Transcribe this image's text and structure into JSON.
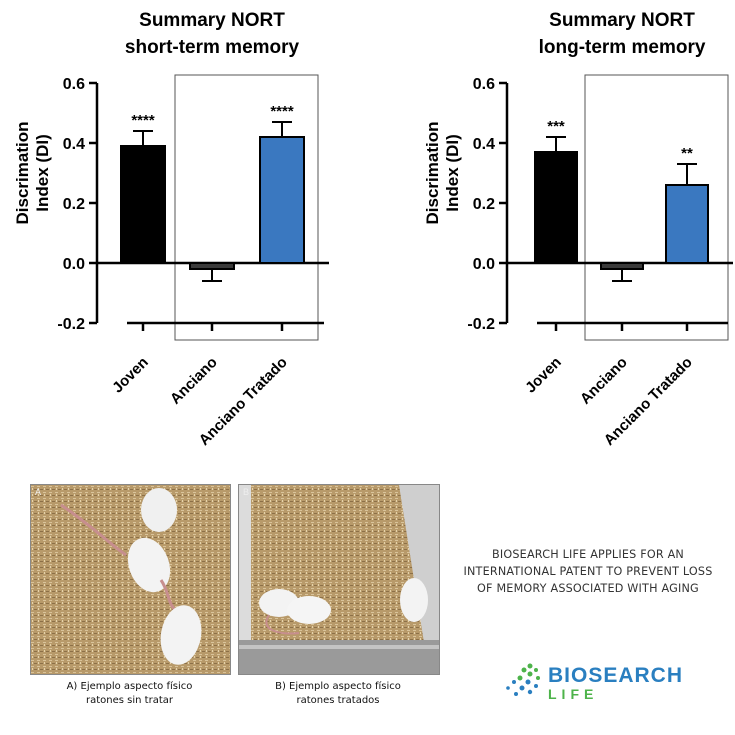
{
  "chart_data": [
    {
      "type": "bar",
      "title": "Summary NORT",
      "subtitle": "short-term memory",
      "ylabel": "Discrimation Index (DI)",
      "ylabel_lines": [
        "Discrimation",
        "Index (DI)"
      ],
      "categories": [
        "Joven",
        "Anciano",
        "Anciano Tratado"
      ],
      "values": [
        0.39,
        -0.02,
        0.42
      ],
      "errors": [
        0.05,
        0.04,
        0.05
      ],
      "significance": [
        "****",
        "",
        "****"
      ],
      "bar_colors": [
        "#000000",
        "#3a3a3a",
        "#3a78c0"
      ],
      "ylim": [
        -0.2,
        0.6
      ],
      "yticks": [
        "-0.2",
        "0.0",
        "0.2",
        "0.4",
        "0.6"
      ]
    },
    {
      "type": "bar",
      "title": "Summary NORT",
      "subtitle": "long-term memory",
      "ylabel": "Discrimation Index (DI)",
      "ylabel_lines": [
        "Discrimation",
        "Index (DI)"
      ],
      "categories": [
        "Joven",
        "Anciano",
        "Anciano Tratado"
      ],
      "values": [
        0.37,
        -0.02,
        0.26
      ],
      "errors": [
        0.05,
        0.04,
        0.07
      ],
      "significance": [
        "***",
        "",
        "**"
      ],
      "bar_colors": [
        "#000000",
        "#3a3a3a",
        "#3a78c0"
      ],
      "ylim": [
        -0.2,
        0.6
      ],
      "yticks": [
        "-0.2",
        "0.0",
        "0.2",
        "0.4",
        "0.6"
      ]
    }
  ],
  "photos": {
    "a": {
      "label": "A",
      "caption_line1": "A) Ejemplo aspecto físico",
      "caption_line2": "ratones sin tratar"
    },
    "b": {
      "label": "B",
      "caption_line1": "B) Ejemplo aspecto físico",
      "caption_line2": "ratones tratados"
    }
  },
  "announcement": {
    "line1": "BIOSEARCH LIFE APPLIES FOR AN",
    "line2": "INTERNATIONAL PATENT TO PREVENT LOSS",
    "line3": "OF MEMORY ASSOCIATED WITH AGING"
  },
  "logo": {
    "word1": "BIOSEARCH",
    "word2": "LIFE"
  },
  "colors": {
    "accent_blue": "#3a78c0",
    "logo_blue": "#2a7fc0",
    "logo_green": "#4db34a"
  }
}
